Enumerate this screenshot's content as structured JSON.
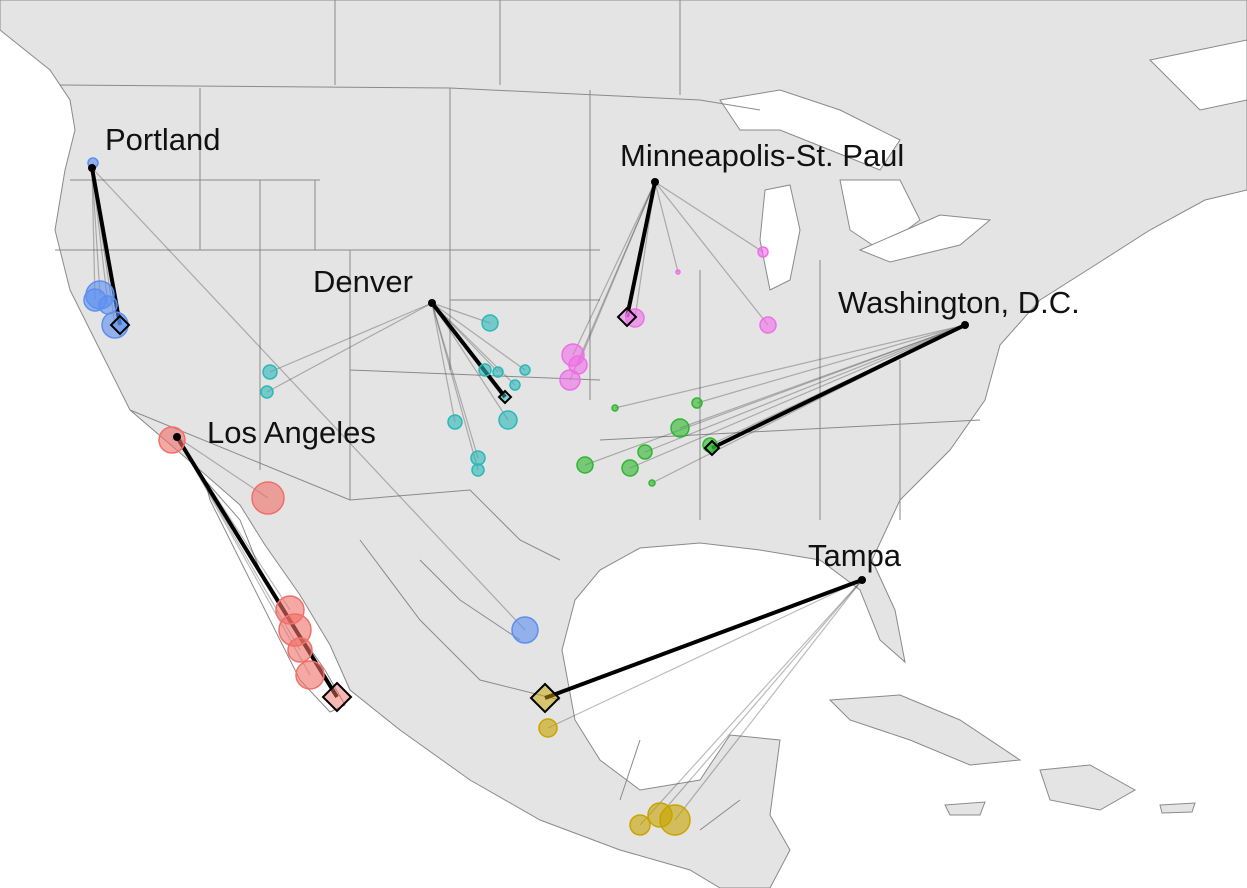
{
  "cities": [
    "Portland",
    "Minneapolis-St. Paul",
    "Denver",
    "Washington, D.C.",
    "Los Angeles",
    "Tampa"
  ]
}
